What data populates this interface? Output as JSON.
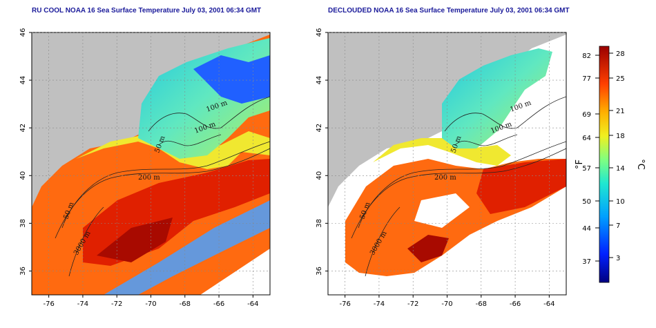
{
  "panels": [
    {
      "title": "RU COOL NOAA 16 Sea Surface Temperature July 03, 2001 06:34 GMT",
      "variant": "raw",
      "contour_labels": [
        "100 m",
        "100 m",
        "50 m",
        "200 m",
        "50 m",
        "3000 m"
      ]
    },
    {
      "title": "DECLOUDED NOAA 16 Sea Surface Temperature July 03, 2001 06:34 GMT",
      "variant": "declouded",
      "contour_labels": [
        "100 m",
        "100 m",
        "50 m",
        "200 m",
        "50 m",
        "3000 m"
      ]
    }
  ],
  "axes": {
    "x_ticks": [
      "-76",
      "-74",
      "-72",
      "-70",
      "-68",
      "-66",
      "-64"
    ],
    "y_ticks": [
      "46",
      "44",
      "42",
      "40",
      "38",
      "36"
    ]
  },
  "colorbar": {
    "fahrenheit_ticks": [
      "82",
      "77",
      "69",
      "64",
      "57",
      "50",
      "44",
      "37"
    ],
    "celsius_ticks": [
      "28",
      "25",
      "21",
      "18",
      "14",
      "10",
      "7",
      "3"
    ],
    "fahrenheit_unit": "°F",
    "celsius_unit": "°C"
  },
  "colors": {
    "land": "#c0c0c0",
    "cloud": "#ffffff",
    "title": "#1a1a9a"
  }
}
